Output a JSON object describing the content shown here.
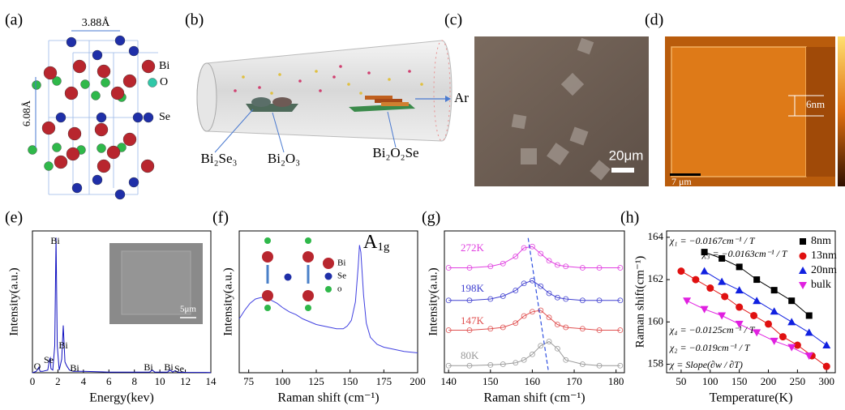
{
  "panels": {
    "a": {
      "label": "(a)",
      "lattice_a": "3.88Å",
      "lattice_c": "6.08Å",
      "legend": [
        "Bi",
        "O",
        "Se"
      ]
    },
    "b": {
      "label": "(b)",
      "precursors": [
        "Bi₂Se₃",
        "Bi₂O₃"
      ],
      "product": "Bi₂O₂Se",
      "gas": "Ar"
    },
    "c": {
      "label": "(c)",
      "scale_bar": "20μm"
    },
    "d": {
      "label": "(d)",
      "step_height": "6nm",
      "scale_bar": "7 μm"
    }
  },
  "chart_data": [
    {
      "type": "line",
      "panel_label": "(e)",
      "xlabel": "Energy(kev)",
      "ylabel": "Intensity(a.u.)",
      "xlim": [
        0,
        14
      ],
      "xticks": [
        0,
        2,
        4,
        6,
        8,
        10,
        12,
        14
      ],
      "ylim": [
        0,
        105
      ],
      "series": [
        {
          "color": "#1010c0",
          "x": [
            0,
            0.3,
            0.5,
            0.6,
            0.8,
            1.2,
            1.35,
            1.4,
            1.45,
            1.6,
            1.75,
            1.85,
            1.95,
            2.1,
            2.3,
            2.42,
            2.55,
            2.7,
            2.9,
            3.2,
            4,
            6,
            8,
            9.2,
            9.4,
            9.6,
            10.6,
            10.8,
            11.0,
            11.2,
            11.4,
            12,
            14
          ],
          "values": [
            0,
            1,
            4,
            1,
            1,
            2,
            10,
            11,
            3,
            2,
            20,
            100,
            20,
            2,
            10,
            35,
            8,
            5,
            2,
            1,
            1,
            0.5,
            0.5,
            0.5,
            2,
            0.5,
            0.5,
            2,
            0.5,
            1.5,
            0.5,
            0.3,
            0.2
          ]
        }
      ],
      "peak_labels": [
        "Bi",
        "Se",
        "O",
        "Bi",
        "Bi",
        "Bi",
        "Bi",
        "Se"
      ],
      "inset_scale_bar": "5μm"
    },
    {
      "type": "line",
      "panel_label": "(f)",
      "xlabel": "Raman shift (cm⁻¹)",
      "ylabel": "Intensity(a.u.)",
      "xlim": [
        68,
        200
      ],
      "xticks": [
        75,
        100,
        125,
        150,
        175,
        200
      ],
      "ylim": [
        0,
        100
      ],
      "series": [
        {
          "color": "#4040e0",
          "x": [
            68,
            72,
            76,
            80,
            84,
            88,
            92,
            96,
            100,
            105,
            110,
            115,
            120,
            125,
            130,
            135,
            140,
            145,
            148,
            151,
            154,
            156,
            157,
            158,
            160,
            162,
            165,
            170,
            175,
            180,
            190,
            200
          ],
          "values": [
            38,
            44,
            49,
            52,
            53,
            53,
            51,
            49,
            46,
            43,
            41,
            38,
            36,
            34,
            33,
            32,
            31,
            31,
            33,
            37,
            50,
            75,
            90,
            85,
            55,
            35,
            25,
            20,
            18,
            17,
            15,
            14
          ]
        }
      ],
      "mode": {
        "base": "A",
        "sub": "1g"
      },
      "atom_legend": [
        "Bi",
        "Se",
        "o"
      ]
    },
    {
      "type": "line",
      "panel_label": "(g)",
      "xlabel": "Raman shift (cm⁻¹)",
      "ylabel": "Intensity(a.u.)",
      "xlim": [
        139,
        182
      ],
      "xticks": [
        140,
        150,
        160,
        170,
        180
      ],
      "ylim": [
        0,
        100
      ],
      "series": [
        {
          "name": "272K",
          "color": "#e040e0",
          "marker": "circle-open",
          "x": [
            140,
            145,
            150,
            153,
            156,
            158,
            160,
            162,
            164,
            166,
            168,
            172,
            176,
            181
          ],
          "values": [
            74,
            74,
            75,
            77,
            82,
            88,
            89,
            84,
            79,
            76,
            75,
            74,
            74,
            74
          ]
        },
        {
          "name": "198K",
          "color": "#4040d0",
          "marker": "circle-open",
          "x": [
            140,
            145,
            150,
            153,
            156,
            158,
            160,
            162,
            164,
            166,
            168,
            172,
            176,
            181
          ],
          "values": [
            51,
            51,
            52,
            54,
            58,
            63,
            65,
            61,
            56,
            53,
            52,
            51,
            51,
            51
          ]
        },
        {
          "name": "147K",
          "color": "#e05050",
          "marker": "circle-open",
          "x": [
            140,
            145,
            150,
            153,
            156,
            158,
            160,
            162,
            164,
            166,
            168,
            172,
            176,
            181
          ],
          "values": [
            30,
            30,
            31,
            32,
            35,
            40,
            43,
            44,
            39,
            34,
            32,
            31,
            30,
            30
          ]
        },
        {
          "name": "80K",
          "color": "#999999",
          "marker": "circle-open",
          "x": [
            140,
            145,
            150,
            153,
            156,
            158,
            160,
            162,
            164,
            166,
            168,
            172,
            176,
            181
          ],
          "values": [
            5,
            5,
            5.5,
            6,
            7,
            9,
            13,
            19,
            22,
            17,
            9,
            6,
            5,
            5
          ]
        }
      ],
      "trend": {
        "color": "#3050e0",
        "x": [
          159,
          163.8
        ],
        "values": [
          95,
          2
        ]
      }
    },
    {
      "type": "line",
      "panel_label": "(h)",
      "xlabel": "Temperature(K)",
      "ylabel": "Raman shift(cm⁻¹)",
      "xlim": [
        25,
        315
      ],
      "xticks": [
        50,
        100,
        150,
        200,
        250,
        300
      ],
      "ylim": [
        157.6,
        164.3
      ],
      "yticks": [
        158,
        160,
        162,
        164
      ],
      "series": [
        {
          "name": "8nm",
          "color": "#000000",
          "marker": "square",
          "x": [
            90,
            120,
            150,
            180,
            210,
            240,
            270
          ],
          "values": [
            163.3,
            163.0,
            162.6,
            162.0,
            161.5,
            161.0,
            160.3
          ]
        },
        {
          "name": "13nm",
          "color": "#e01010",
          "marker": "circle",
          "x": [
            50,
            75,
            100,
            125,
            150,
            175,
            200,
            225,
            250,
            275,
            300
          ],
          "values": [
            162.4,
            162.0,
            161.6,
            161.2,
            160.7,
            160.3,
            159.9,
            159.3,
            158.9,
            158.4,
            157.9
          ]
        },
        {
          "name": "20nm",
          "color": "#1020e0",
          "marker": "triangle-up",
          "x": [
            90,
            120,
            150,
            180,
            210,
            240,
            270,
            300
          ],
          "values": [
            162.4,
            161.9,
            161.5,
            161.0,
            160.5,
            160.0,
            159.5,
            158.9
          ]
        },
        {
          "name": "bulk",
          "color": "#e020e0",
          "marker": "triangle-down",
          "x": [
            60,
            90,
            120,
            150,
            180,
            210,
            240,
            270
          ],
          "values": [
            161.0,
            160.6,
            160.3,
            159.9,
            159.5,
            159.1,
            158.8,
            158.4
          ]
        }
      ],
      "annotations": [
        "χ₁ = −0.0167cm⁻¹ / T",
        "χ₃ = −0.0163cm⁻¹ / T",
        "χ₄ = −0.0125cm⁻¹ / T",
        "χ₂ = −0.019cm⁻¹ / T",
        "χ = Slope(∂w / ∂T)"
      ]
    }
  ]
}
